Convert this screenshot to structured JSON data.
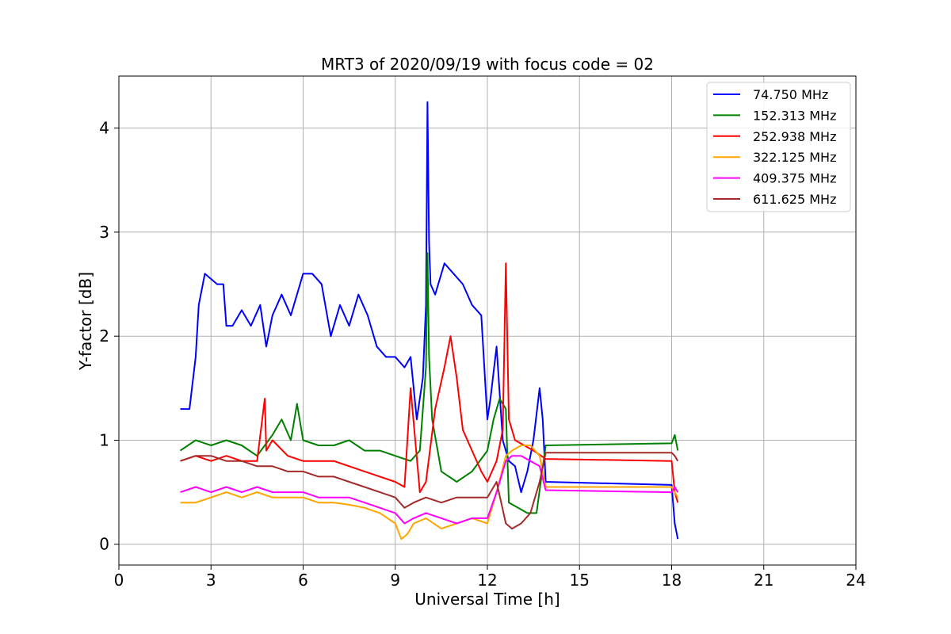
{
  "chart_data": {
    "type": "line",
    "title": "MRT3 of 2020/09/19 with focus code = 02",
    "xlabel": "Universal Time [h]",
    "ylabel": "Y-factor [dB]",
    "xlim": [
      0,
      24
    ],
    "ylim": [
      -0.2,
      4.5
    ],
    "xticks": [
      0,
      3,
      6,
      9,
      12,
      15,
      18,
      21,
      24
    ],
    "yticks": [
      0,
      1,
      2,
      3,
      4
    ],
    "grid": true,
    "legend_position": "top-right",
    "series": [
      {
        "name": " 74.750 MHz",
        "color": "#0000ff",
        "x": [
          2.0,
          2.3,
          2.5,
          2.6,
          2.8,
          3.0,
          3.2,
          3.4,
          3.5,
          3.7,
          4.0,
          4.3,
          4.6,
          4.8,
          5.0,
          5.3,
          5.6,
          6.0,
          6.3,
          6.6,
          6.9,
          7.2,
          7.5,
          7.8,
          8.1,
          8.4,
          8.7,
          9.0,
          9.3,
          9.5,
          9.7,
          9.9,
          10.0,
          10.05,
          10.1,
          10.15,
          10.3,
          10.6,
          10.9,
          11.2,
          11.5,
          11.8,
          12.0,
          12.1,
          12.3,
          12.5,
          12.7,
          12.9,
          13.1,
          13.3,
          13.5,
          13.7,
          13.8,
          13.9,
          18.0,
          18.1,
          18.2
        ],
        "y": [
          1.3,
          1.3,
          1.8,
          2.3,
          2.6,
          2.55,
          2.5,
          2.5,
          2.1,
          2.1,
          2.25,
          2.1,
          2.3,
          1.9,
          2.2,
          2.4,
          2.2,
          2.6,
          2.6,
          2.5,
          2.0,
          2.3,
          2.1,
          2.4,
          2.2,
          1.9,
          1.8,
          1.8,
          1.7,
          1.8,
          1.2,
          1.6,
          2.3,
          4.25,
          2.9,
          2.5,
          2.4,
          2.7,
          2.6,
          2.5,
          2.3,
          2.2,
          1.2,
          1.4,
          1.9,
          1.0,
          0.8,
          0.75,
          0.5,
          0.7,
          1.0,
          1.5,
          1.2,
          0.6,
          0.57,
          0.2,
          0.05
        ]
      },
      {
        "name": "152.313 MHz",
        "color": "#008000",
        "x": [
          2.0,
          2.5,
          3.0,
          3.5,
          4.0,
          4.5,
          5.0,
          5.3,
          5.6,
          5.8,
          6.0,
          6.5,
          7.0,
          7.5,
          8.0,
          8.5,
          9.0,
          9.5,
          9.8,
          10.0,
          10.05,
          10.1,
          10.2,
          10.5,
          11.0,
          11.5,
          12.0,
          12.2,
          12.4,
          12.6,
          12.7,
          13.0,
          13.3,
          13.6,
          13.9,
          18.0,
          18.1,
          18.2
        ],
        "y": [
          0.9,
          1.0,
          0.95,
          1.0,
          0.95,
          0.85,
          1.05,
          1.2,
          1.0,
          1.35,
          1.0,
          0.95,
          0.95,
          1.0,
          0.9,
          0.9,
          0.85,
          0.8,
          0.9,
          1.7,
          2.8,
          1.8,
          1.2,
          0.7,
          0.6,
          0.7,
          0.9,
          1.2,
          1.4,
          1.3,
          0.4,
          0.35,
          0.3,
          0.3,
          0.95,
          0.97,
          1.05,
          0.9
        ]
      },
      {
        "name": "252.938 MHz",
        "color": "#ff0000",
        "x": [
          2.0,
          2.5,
          3.0,
          3.5,
          4.0,
          4.5,
          4.75,
          4.8,
          5.0,
          5.5,
          6.0,
          6.5,
          7.0,
          7.5,
          8.0,
          8.5,
          9.0,
          9.3,
          9.5,
          9.8,
          10.0,
          10.3,
          10.6,
          10.8,
          11.0,
          11.2,
          11.5,
          11.8,
          12.0,
          12.3,
          12.5,
          12.6,
          12.7,
          12.9,
          13.2,
          13.5,
          13.9,
          18.0,
          18.1,
          18.2
        ],
        "y": [
          0.8,
          0.85,
          0.8,
          0.85,
          0.8,
          0.8,
          1.4,
          0.9,
          1.0,
          0.85,
          0.8,
          0.8,
          0.8,
          0.75,
          0.7,
          0.65,
          0.6,
          0.55,
          1.5,
          0.5,
          0.6,
          1.3,
          1.7,
          2.0,
          1.6,
          1.1,
          0.9,
          0.7,
          0.6,
          0.8,
          1.1,
          2.7,
          1.2,
          1.0,
          0.95,
          0.9,
          0.82,
          0.8,
          0.5,
          0.4
        ]
      },
      {
        "name": "322.125 MHz",
        "color": "#ffa500",
        "x": [
          2.0,
          2.5,
          3.0,
          3.5,
          4.0,
          4.5,
          5.0,
          5.5,
          6.0,
          6.5,
          7.0,
          7.5,
          8.0,
          8.5,
          9.0,
          9.2,
          9.4,
          9.6,
          10.0,
          10.5,
          11.0,
          11.5,
          12.0,
          12.3,
          12.6,
          12.8,
          13.1,
          13.4,
          13.7,
          13.9,
          18.0,
          18.1,
          18.2
        ],
        "y": [
          0.4,
          0.4,
          0.45,
          0.5,
          0.45,
          0.5,
          0.45,
          0.45,
          0.45,
          0.4,
          0.4,
          0.38,
          0.35,
          0.3,
          0.2,
          0.05,
          0.1,
          0.2,
          0.25,
          0.15,
          0.2,
          0.25,
          0.2,
          0.5,
          0.85,
          0.9,
          0.95,
          0.95,
          0.85,
          0.55,
          0.55,
          0.5,
          0.45
        ]
      },
      {
        "name": "409.375 MHz",
        "color": "#ff00ff",
        "x": [
          2.0,
          2.5,
          3.0,
          3.5,
          4.0,
          4.5,
          5.0,
          5.5,
          6.0,
          6.5,
          7.0,
          7.5,
          8.0,
          8.5,
          9.0,
          9.3,
          9.6,
          10.0,
          10.5,
          11.0,
          11.5,
          12.0,
          12.3,
          12.6,
          12.8,
          13.1,
          13.4,
          13.7,
          13.9,
          18.0,
          18.1,
          18.2
        ],
        "y": [
          0.5,
          0.55,
          0.5,
          0.55,
          0.5,
          0.55,
          0.5,
          0.5,
          0.5,
          0.45,
          0.45,
          0.45,
          0.4,
          0.35,
          0.3,
          0.2,
          0.25,
          0.3,
          0.25,
          0.2,
          0.25,
          0.25,
          0.5,
          0.8,
          0.85,
          0.85,
          0.8,
          0.75,
          0.52,
          0.5,
          0.55,
          0.5
        ]
      },
      {
        "name": "611.625 MHz",
        "color": "#a52a2a",
        "x": [
          2.0,
          2.5,
          3.0,
          3.5,
          4.0,
          4.5,
          5.0,
          5.5,
          6.0,
          6.5,
          7.0,
          7.5,
          8.0,
          8.5,
          9.0,
          9.3,
          9.6,
          10.0,
          10.5,
          11.0,
          11.5,
          12.0,
          12.3,
          12.6,
          12.8,
          13.1,
          13.4,
          13.7,
          13.9,
          18.0,
          18.1,
          18.2
        ],
        "y": [
          0.8,
          0.85,
          0.85,
          0.8,
          0.8,
          0.75,
          0.75,
          0.7,
          0.7,
          0.65,
          0.65,
          0.6,
          0.55,
          0.5,
          0.45,
          0.35,
          0.4,
          0.45,
          0.4,
          0.45,
          0.45,
          0.45,
          0.6,
          0.2,
          0.15,
          0.2,
          0.3,
          0.6,
          0.88,
          0.88,
          0.85,
          0.8
        ]
      }
    ]
  }
}
